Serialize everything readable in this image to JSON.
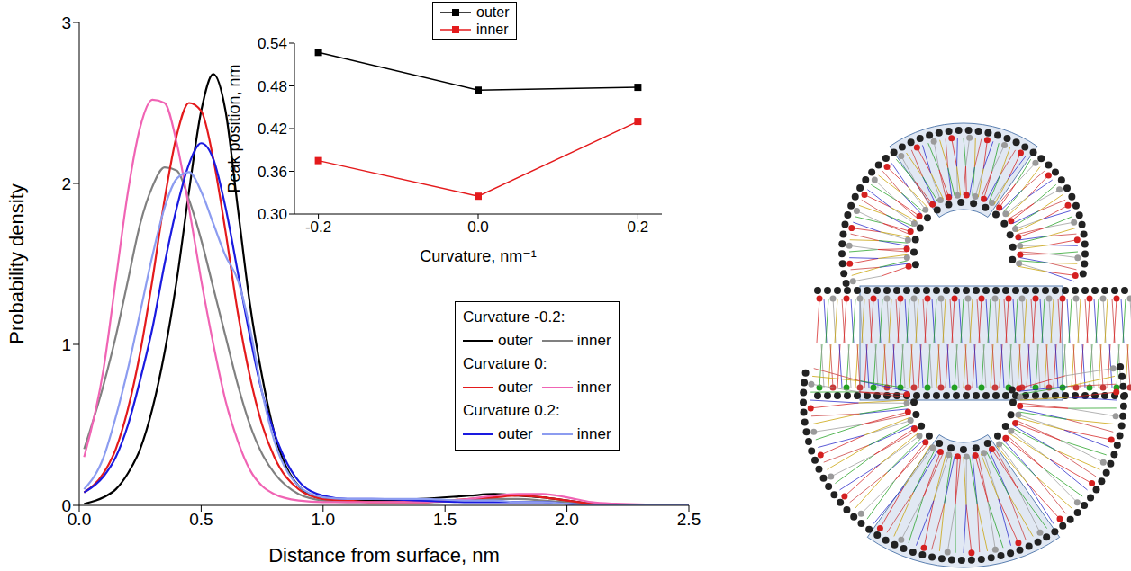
{
  "chart_data": [
    {
      "type": "line",
      "xlabel": "Distance from surface, nm",
      "ylabel": "Probability density",
      "x": [
        0.02,
        0.1,
        0.15,
        0.2,
        0.25,
        0.3,
        0.35,
        0.4,
        0.45,
        0.5,
        0.55,
        0.6,
        0.65,
        0.7,
        0.75,
        0.8,
        0.9,
        1.0,
        1.1,
        1.2,
        1.4,
        1.6,
        1.7,
        1.8,
        1.9,
        2.0,
        2.1,
        2.2,
        2.5
      ],
      "xlim": [
        0,
        2.5
      ],
      "xticks": [
        {
          "value": 0,
          "label": "0.0"
        },
        0.5,
        {
          "value": 1,
          "label": "1.0"
        },
        1.5,
        {
          "value": 2,
          "label": "2.0"
        },
        2.5
      ],
      "ylim": [
        0,
        3
      ],
      "yticks": [
        0,
        1,
        2,
        3
      ],
      "legend": "lower right",
      "series": [
        {
          "name": "outer",
          "group": "Curvature -0.2:",
          "color": "#000000",
          "values": [
            0.01,
            0.05,
            0.1,
            0.2,
            0.35,
            0.6,
            0.95,
            1.4,
            1.95,
            2.45,
            2.68,
            2.45,
            1.85,
            1.25,
            0.8,
            0.45,
            0.12,
            0.04,
            0.03,
            0.03,
            0.04,
            0.06,
            0.07,
            0.06,
            0.05,
            0.03,
            0.01,
            0,
            0
          ]
        },
        {
          "name": "inner",
          "group": "Curvature -0.2:",
          "color": "#808080",
          "values": [
            0.35,
            0.75,
            1.05,
            1.4,
            1.75,
            1.98,
            2.1,
            2.08,
            1.9,
            1.65,
            1.35,
            1.05,
            0.75,
            0.5,
            0.32,
            0.2,
            0.07,
            0.03,
            0.02,
            0.02,
            0.02,
            0.03,
            0.04,
            0.04,
            0.03,
            0.02,
            0.01,
            0,
            0
          ]
        },
        {
          "name": "outer",
          "group": "Curvature 0:",
          "color": "#e41a1c",
          "values": [
            0.08,
            0.2,
            0.35,
            0.6,
            0.95,
            1.4,
            1.9,
            2.3,
            2.5,
            2.45,
            2.15,
            1.7,
            1.2,
            0.8,
            0.5,
            0.3,
            0.1,
            0.04,
            0.03,
            0.02,
            0.02,
            0.04,
            0.05,
            0.06,
            0.05,
            0.03,
            0.01,
            0,
            0
          ]
        },
        {
          "name": "inner",
          "group": "Curvature 0:",
          "color": "#f064b4",
          "values": [
            0.3,
            0.85,
            1.4,
            1.95,
            2.35,
            2.52,
            2.5,
            2.25,
            1.85,
            1.4,
            1.0,
            0.65,
            0.4,
            0.22,
            0.12,
            0.07,
            0.03,
            0.02,
            0.02,
            0.02,
            0.02,
            0.04,
            0.06,
            0.07,
            0.07,
            0.05,
            0.02,
            0.01,
            0
          ]
        },
        {
          "name": "outer",
          "group": "Curvature 0.2:",
          "color": "#1a1ae0",
          "values": [
            0.08,
            0.18,
            0.3,
            0.5,
            0.78,
            1.1,
            1.5,
            1.85,
            2.12,
            2.25,
            2.15,
            1.85,
            1.45,
            1.05,
            0.7,
            0.45,
            0.15,
            0.06,
            0.04,
            0.04,
            0.03,
            0.02,
            0.02,
            0.02,
            0.02,
            0.01,
            0,
            0,
            0
          ]
        },
        {
          "name": "inner",
          "group": "Curvature 0.2:",
          "color": "#8c9cf0",
          "values": [
            0.1,
            0.3,
            0.55,
            0.85,
            1.2,
            1.55,
            1.85,
            2.03,
            2.07,
            1.95,
            1.75,
            1.55,
            1.4,
            1.1,
            0.7,
            0.4,
            0.12,
            0.05,
            0.04,
            0.04,
            0.04,
            0.03,
            0.03,
            0.02,
            0.02,
            0.01,
            0,
            0,
            0
          ]
        }
      ]
    },
    {
      "type": "line",
      "xlabel": "Curvature, nm⁻¹",
      "ylabel": "Peak position, nm",
      "x": [
        -0.2,
        0,
        0.2
      ],
      "xlim": [
        -0.23,
        0.23
      ],
      "xticks": [
        -0.2,
        {
          "value": 0,
          "label": "0.0"
        },
        0.2
      ],
      "ylim": [
        0.3,
        0.54
      ],
      "yticks": [
        {
          "value": 0.3,
          "label": "0.30"
        },
        {
          "value": 0.36,
          "label": "0.36"
        },
        {
          "value": 0.42,
          "label": "0.42"
        },
        {
          "value": 0.48,
          "label": "0.48"
        },
        {
          "value": 0.54,
          "label": "0.54"
        }
      ],
      "legend": "top",
      "marker": "square",
      "series": [
        {
          "name": "outer",
          "color": "#000000",
          "values": [
            0.527,
            0.474,
            0.478
          ]
        },
        {
          "name": "inner",
          "color": "#e41a1c",
          "values": [
            0.375,
            0.325,
            0.43
          ]
        }
      ]
    }
  ]
}
